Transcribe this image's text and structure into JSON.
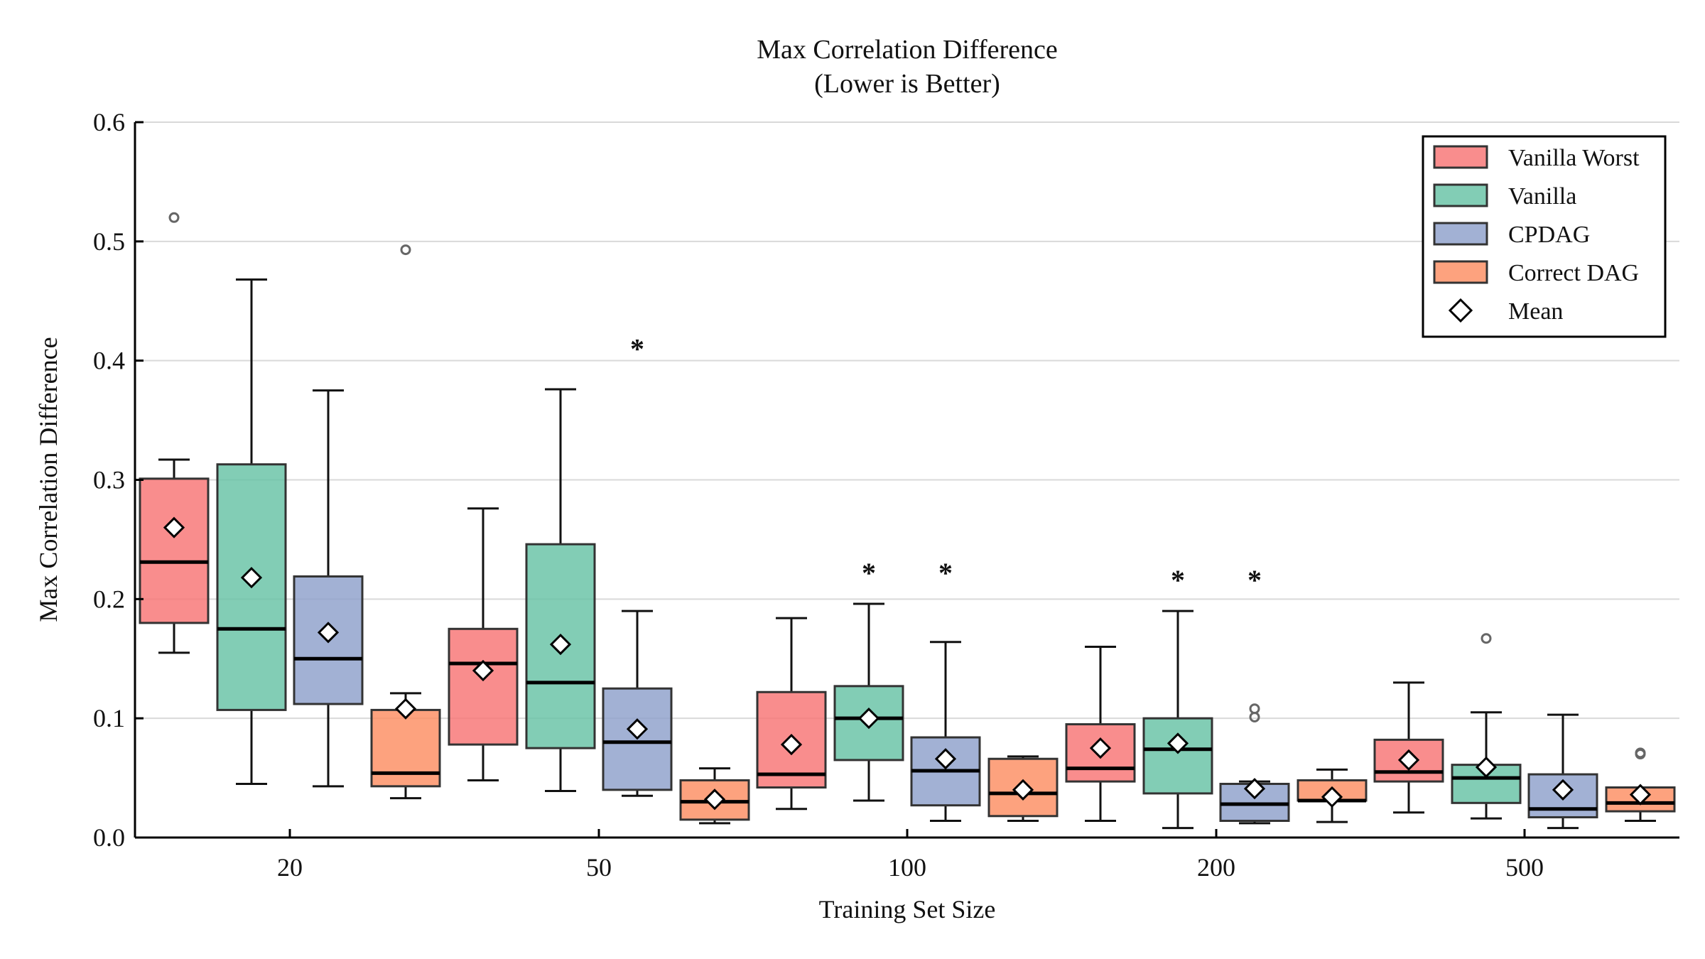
{
  "chart_data": {
    "type": "boxplot",
    "title": "Max Correlation Difference",
    "subtitle": "(Lower is Better)",
    "xlabel": "Training Set Size",
    "ylabel": "Max Correlation Difference",
    "ylim": [
      0,
      0.6
    ],
    "yticks": [
      "0.0",
      "0.1",
      "0.2",
      "0.3",
      "0.4",
      "0.5",
      "0.6"
    ],
    "categories": [
      "20",
      "50",
      "100",
      "200",
      "500"
    ],
    "grid": "horizontal",
    "legend_position": "top-right",
    "series": [
      {
        "name": "Vanilla Worst",
        "color": "#f87474",
        "boxes": [
          {
            "whisker_low": 0.155,
            "q1": 0.18,
            "median": 0.231,
            "q3": 0.301,
            "whisker_high": 0.317,
            "mean": 0.26,
            "outliers": [
              0.52
            ]
          },
          {
            "whisker_low": 0.048,
            "q1": 0.078,
            "median": 0.146,
            "q3": 0.175,
            "whisker_high": 0.276,
            "mean": 0.14,
            "outliers": []
          },
          {
            "whisker_low": 0.024,
            "q1": 0.042,
            "median": 0.053,
            "q3": 0.122,
            "whisker_high": 0.184,
            "mean": 0.078,
            "outliers": []
          },
          {
            "whisker_low": 0.014,
            "q1": 0.047,
            "median": 0.058,
            "q3": 0.095,
            "whisker_high": 0.16,
            "mean": 0.075,
            "outliers": []
          },
          {
            "whisker_low": 0.021,
            "q1": 0.047,
            "median": 0.055,
            "q3": 0.082,
            "whisker_high": 0.13,
            "mean": 0.065,
            "outliers": []
          }
        ]
      },
      {
        "name": "Vanilla",
        "color": "#66c2a5",
        "boxes": [
          {
            "whisker_low": 0.045,
            "q1": 0.107,
            "median": 0.175,
            "q3": 0.313,
            "whisker_high": 0.468,
            "mean": 0.218,
            "outliers": []
          },
          {
            "whisker_low": 0.039,
            "q1": 0.075,
            "median": 0.13,
            "q3": 0.246,
            "whisker_high": 0.376,
            "mean": 0.162,
            "outliers": []
          },
          {
            "whisker_low": 0.031,
            "q1": 0.065,
            "median": 0.1,
            "q3": 0.127,
            "whisker_high": 0.196,
            "mean": 0.1,
            "outliers": []
          },
          {
            "whisker_low": 0.008,
            "q1": 0.037,
            "median": 0.074,
            "q3": 0.1,
            "whisker_high": 0.19,
            "mean": 0.079,
            "outliers": []
          },
          {
            "whisker_low": 0.016,
            "q1": 0.029,
            "median": 0.05,
            "q3": 0.061,
            "whisker_high": 0.105,
            "mean": 0.059,
            "outliers": [
              0.167
            ]
          }
        ]
      },
      {
        "name": "CPDAG",
        "color": "#8da0cb",
        "boxes": [
          {
            "whisker_low": 0.043,
            "q1": 0.112,
            "median": 0.15,
            "q3": 0.219,
            "whisker_high": 0.375,
            "mean": 0.172,
            "outliers": []
          },
          {
            "whisker_low": 0.035,
            "q1": 0.04,
            "median": 0.08,
            "q3": 0.125,
            "whisker_high": 0.19,
            "mean": 0.091,
            "outliers": []
          },
          {
            "whisker_low": 0.014,
            "q1": 0.027,
            "median": 0.056,
            "q3": 0.084,
            "whisker_high": 0.164,
            "mean": 0.066,
            "outliers": []
          },
          {
            "whisker_low": 0.012,
            "q1": 0.014,
            "median": 0.028,
            "q3": 0.045,
            "whisker_high": 0.047,
            "mean": 0.041,
            "outliers": [
              0.101,
              0.108
            ]
          },
          {
            "whisker_low": 0.008,
            "q1": 0.017,
            "median": 0.024,
            "q3": 0.053,
            "whisker_high": 0.103,
            "mean": 0.04,
            "outliers": []
          }
        ]
      },
      {
        "name": "Correct DAG",
        "color": "#fc8d62",
        "boxes": [
          {
            "whisker_low": 0.033,
            "q1": 0.043,
            "median": 0.054,
            "q3": 0.107,
            "whisker_high": 0.121,
            "mean": 0.108,
            "outliers": [
              0.493
            ]
          },
          {
            "whisker_low": 0.012,
            "q1": 0.015,
            "median": 0.03,
            "q3": 0.048,
            "whisker_high": 0.058,
            "mean": 0.032,
            "outliers": []
          },
          {
            "whisker_low": 0.014,
            "q1": 0.018,
            "median": 0.037,
            "q3": 0.066,
            "whisker_high": 0.068,
            "mean": 0.04,
            "outliers": []
          },
          {
            "whisker_low": 0.013,
            "q1": 0.031,
            "median": 0.031,
            "q3": 0.048,
            "whisker_high": 0.057,
            "mean": 0.034,
            "outliers": []
          },
          {
            "whisker_low": 0.014,
            "q1": 0.022,
            "median": 0.029,
            "q3": 0.042,
            "whisker_high": 0.042,
            "mean": 0.036,
            "outliers": [
              0.07,
              0.071
            ]
          }
        ]
      }
    ],
    "mean_legend": "Mean",
    "annotations": [
      {
        "text": "*",
        "category": "50",
        "series": "CPDAG",
        "y": 0.415
      },
      {
        "text": "*",
        "category": "100",
        "series": "CPDAG",
        "y": 0.227
      },
      {
        "text": "*",
        "category": "100",
        "series": "Vanilla",
        "y": 0.227
      },
      {
        "text": "*",
        "category": "200",
        "series": "CPDAG",
        "y": 0.221
      },
      {
        "text": "*",
        "category": "200",
        "series": "Vanilla",
        "y": 0.221
      }
    ]
  }
}
